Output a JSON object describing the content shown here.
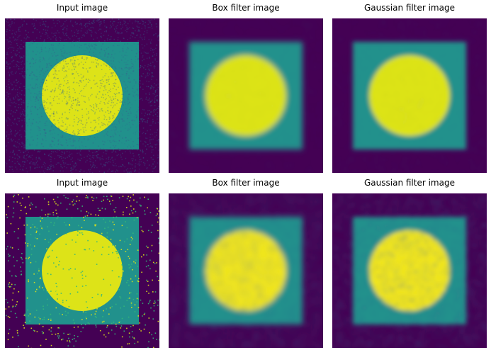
{
  "figure": {
    "panels": [
      {
        "title": "Input image",
        "noise": "gaussian",
        "filter": "none"
      },
      {
        "title": "Box filter image",
        "noise": "gaussian",
        "filter": "box"
      },
      {
        "title": "Gaussian filter image",
        "noise": "gaussian",
        "filter": "gaussian"
      },
      {
        "title": "Input image",
        "noise": "salt-and-pepper",
        "filter": "none"
      },
      {
        "title": "Box filter image",
        "noise": "salt-and-pepper",
        "filter": "box"
      },
      {
        "title": "Gaussian filter image",
        "noise": "salt-and-pepper",
        "filter": "gaussian"
      }
    ],
    "colormap": "viridis",
    "colors": {
      "background": "#440154",
      "square": "#21918c",
      "circle": "#dde318",
      "circle_bright": "#f0e51c",
      "speckle": "#35b779"
    }
  }
}
